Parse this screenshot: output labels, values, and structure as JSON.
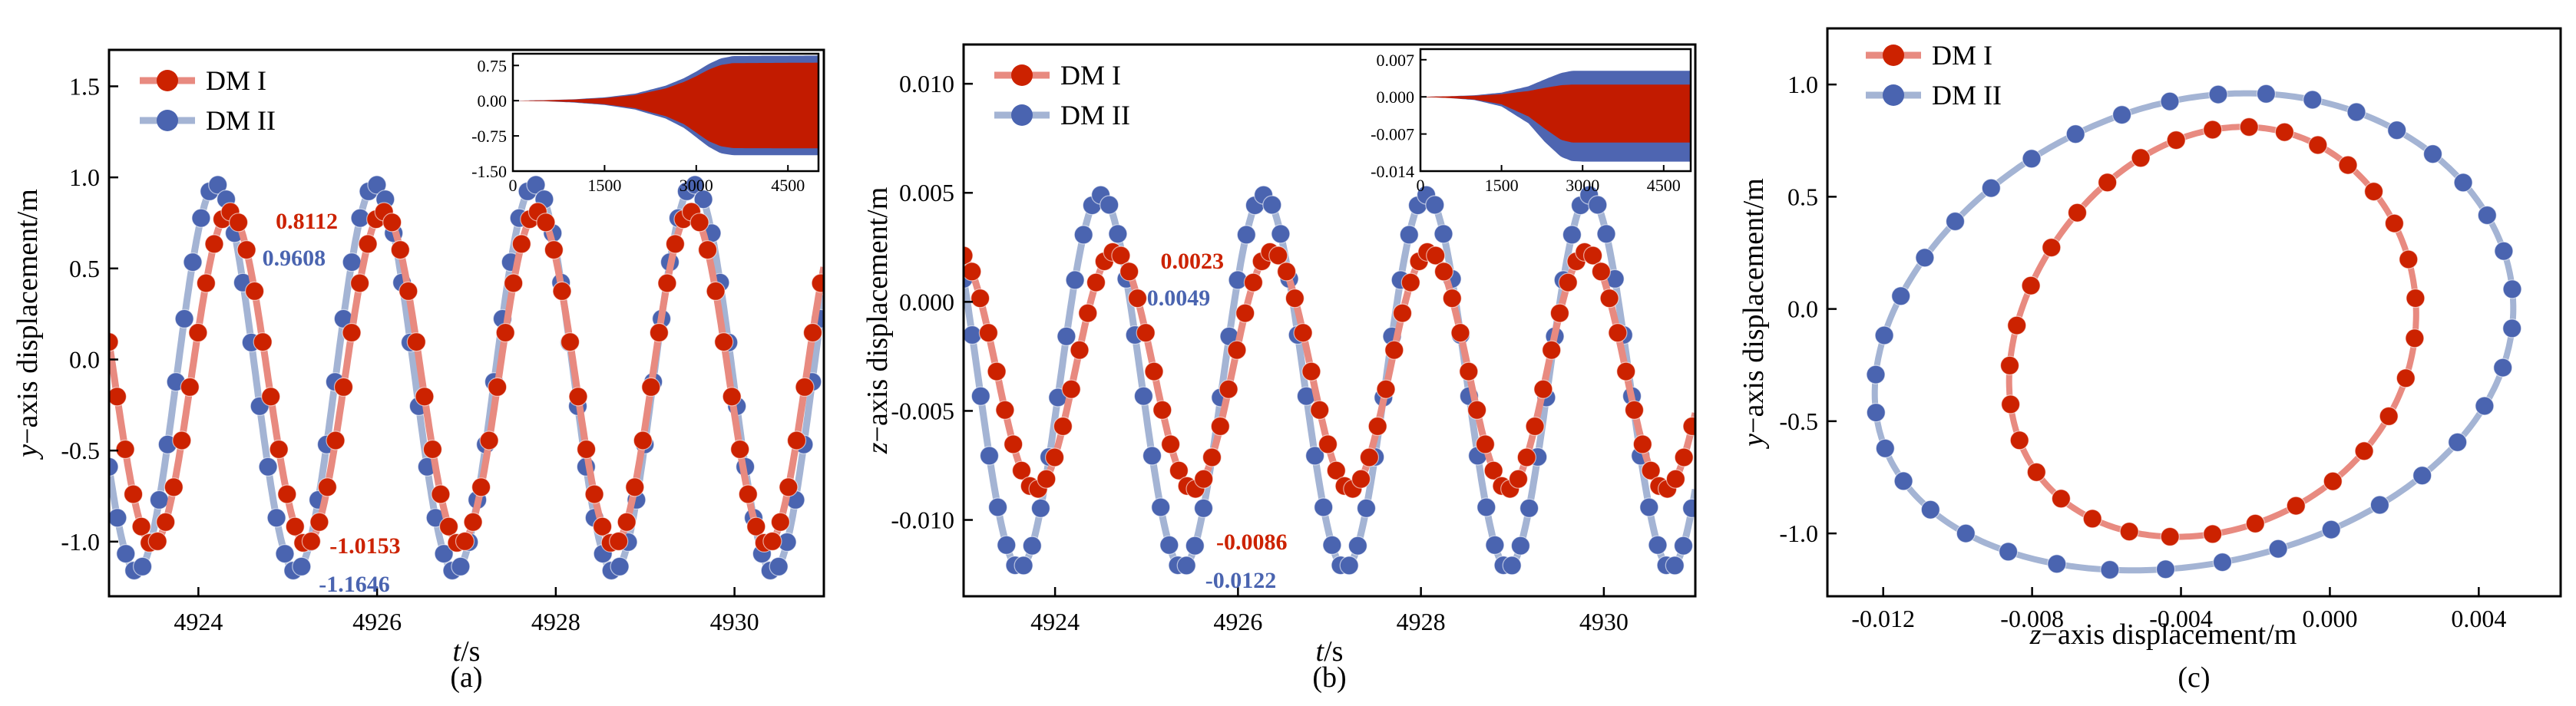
{
  "legend": {
    "s1": "DM I",
    "s2": "DM II"
  },
  "colors": {
    "s1_line": "#e88a80",
    "s1_marker": "#cc2200",
    "s2_line": "#a4b4d4",
    "s2_marker": "#4a64b0",
    "fill_red": "#c21b00",
    "fill_blue": "#4e65b1"
  },
  "chart_data": [
    {
      "type": "line",
      "panel_label": "(a)",
      "xlabel_var": "t",
      "xlabel_unit": "/s",
      "ylabel_var": "y",
      "ylabel_rest": "−axis displacement/m",
      "xlim": [
        4923.0,
        4931.0
      ],
      "ylim": [
        -1.3,
        1.7
      ],
      "xticks": [
        4924,
        4926,
        4928,
        4930
      ],
      "yticks": [
        "-1.0",
        "-0.5",
        "0.0",
        "0.5",
        "1.0",
        "1.5"
      ],
      "ytick_values": [
        -1.0,
        -0.5,
        0.0,
        0.5,
        1.0,
        1.5
      ],
      "series": [
        {
          "name": "DM I",
          "amp": 0.9133,
          "offset": -0.1021,
          "period": 1.72,
          "phase": 4924.35,
          "t_start": 4923.0,
          "t_end": 4931.0
        },
        {
          "name": "DM II",
          "amp": 1.0627,
          "offset": -0.1019,
          "period": 1.78,
          "phase": 4924.2,
          "t_start": 4923.0,
          "t_end": 4931.0
        }
      ],
      "annotations": [
        {
          "text": "0.8112",
          "series": "DM I",
          "kind": "max"
        },
        {
          "text": "0.9608",
          "series": "DM II",
          "kind": "max"
        },
        {
          "text": "-1.0153",
          "series": "DM I",
          "kind": "min"
        },
        {
          "text": "-1.1646",
          "series": "DM II",
          "kind": "min"
        }
      ],
      "inset": {
        "xlim": [
          0,
          5000
        ],
        "ylim": [
          -1.5,
          1.0
        ],
        "xticks": [
          0,
          1500,
          3000,
          4500
        ],
        "yticks": [
          "-1.50",
          "-0.75",
          "0.00",
          "0.75"
        ],
        "ytick_values": [
          -1.5,
          -0.75,
          0.0,
          0.75
        ],
        "envelope": {
          "t": [
            0,
            500,
            1000,
            1500,
            2000,
            2500,
            2800,
            3000,
            3200,
            3400,
            3600,
            5000
          ],
          "blue_upper": [
            0,
            0.01,
            0.03,
            0.07,
            0.15,
            0.32,
            0.48,
            0.62,
            0.78,
            0.9,
            0.95,
            0.96
          ],
          "blue_lower": [
            0,
            -0.01,
            -0.04,
            -0.09,
            -0.19,
            -0.38,
            -0.58,
            -0.78,
            -0.98,
            -1.12,
            -1.16,
            -1.16
          ],
          "red_upper": [
            0,
            0.008,
            0.025,
            0.055,
            0.12,
            0.26,
            0.4,
            0.52,
            0.66,
            0.76,
            0.8,
            0.81
          ],
          "red_lower": [
            0,
            -0.01,
            -0.03,
            -0.075,
            -0.16,
            -0.33,
            -0.5,
            -0.68,
            -0.86,
            -0.97,
            -1.01,
            -1.015
          ]
        }
      }
    },
    {
      "type": "line",
      "panel_label": "(b)",
      "xlabel_var": "t",
      "xlabel_unit": "/s",
      "ylabel_var": "z",
      "ylabel_rest": "−axis displacement/m",
      "xlim": [
        4923.0,
        4931.0
      ],
      "ylim": [
        -0.0135,
        0.0118
      ],
      "xticks": [
        4924,
        4926,
        4928,
        4930
      ],
      "yticks": [
        "-0.010",
        "-0.005",
        "0.000",
        "0.005",
        "0.010"
      ],
      "ytick_values": [
        -0.01,
        -0.005,
        0.0,
        0.005,
        0.01
      ],
      "series": [
        {
          "name": "DM I",
          "amp": 0.00545,
          "offset": -0.00315,
          "period": 1.72,
          "phase": 4924.65,
          "t_start": 4923.0,
          "t_end": 4931.0
        },
        {
          "name": "DM II",
          "amp": 0.00855,
          "offset": -0.00365,
          "period": 1.78,
          "phase": 4924.5,
          "t_start": 4923.0,
          "t_end": 4931.0
        }
      ],
      "annotations": [
        {
          "text": "0.0023",
          "series": "DM I",
          "kind": "max"
        },
        {
          "text": "0.0049",
          "series": "DM II",
          "kind": "max"
        },
        {
          "text": "-0.0086",
          "series": "DM I",
          "kind": "min"
        },
        {
          "text": "-0.0122",
          "series": "DM II",
          "kind": "min"
        }
      ],
      "inset": {
        "xlim": [
          0,
          5000
        ],
        "ylim": [
          -0.014,
          0.009
        ],
        "xticks": [
          0,
          1500,
          3000,
          4500
        ],
        "yticks": [
          "-0.014",
          "-0.007",
          "0.000",
          "0.007"
        ],
        "ytick_values": [
          -0.014,
          -0.007,
          0.0,
          0.007
        ],
        "envelope": {
          "t": [
            0,
            500,
            1000,
            1500,
            2000,
            2300,
            2600,
            2800,
            3000,
            5000
          ],
          "blue_upper": [
            0,
            0.0001,
            0.0003,
            0.0008,
            0.002,
            0.0033,
            0.0045,
            0.0049,
            0.0049,
            0.0049
          ],
          "blue_lower": [
            0,
            -0.0002,
            -0.0006,
            -0.0018,
            -0.005,
            -0.0085,
            -0.0113,
            -0.0121,
            -0.0122,
            -0.0122
          ],
          "red_upper": [
            0,
            0.0001,
            0.0002,
            0.0005,
            0.0011,
            0.0017,
            0.0022,
            0.0023,
            0.0023,
            0.0023
          ],
          "red_lower": [
            0,
            -0.0002,
            -0.0005,
            -0.0014,
            -0.0037,
            -0.006,
            -0.0081,
            -0.0086,
            -0.0086,
            -0.0086
          ]
        }
      }
    },
    {
      "type": "scatter",
      "panel_label": "(c)",
      "xlabel_var": "z",
      "xlabel_rest": "−axis displacement/m",
      "ylabel_var": "y",
      "ylabel_rest": "−axis displacement/m",
      "xlim": [
        -0.0135,
        0.0062
      ],
      "ylim": [
        -1.28,
        1.25
      ],
      "xticks": [
        "-0.012",
        "-0.008",
        "-0.004",
        "0.000",
        "0.004"
      ],
      "xtick_values": [
        -0.012,
        -0.008,
        -0.004,
        0.0,
        0.004
      ],
      "yticks": [
        "-1.0",
        "-0.5",
        "0.0",
        "0.5",
        "1.0"
      ],
      "ytick_values": [
        -1.0,
        -0.5,
        0.0,
        0.5,
        1.0
      ],
      "series": [
        {
          "name": "DM I",
          "z_min": -0.0086,
          "z_max": 0.0023,
          "y_min": -1.0153,
          "y_max": 0.8112,
          "phase": 0.55,
          "markers": 32
        },
        {
          "name": "DM II",
          "z_min": -0.0122,
          "z_max": 0.0049,
          "y_min": -1.1646,
          "y_max": 0.9608,
          "phase": 0.6,
          "markers": 38
        }
      ]
    }
  ]
}
